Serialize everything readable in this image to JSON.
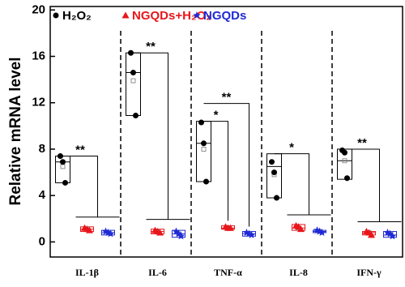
{
  "chart_data": {
    "type": "box",
    "y_label": "Relative mRNA level",
    "categories": [
      "IL-1β",
      "IL-6",
      "TNF-α",
      "IL-8",
      "IFN-γ"
    ],
    "ylim": [
      -1.3,
      20.3
    ],
    "yticks": [
      0,
      4,
      8,
      12,
      16,
      20
    ],
    "series": [
      {
        "name": "H₂O₂",
        "color": "#000000",
        "marker": "circle",
        "points": [
          [
            7.4,
            6.9,
            5.1
          ],
          [
            16.3,
            14.6,
            10.9
          ],
          [
            10.3,
            8.5,
            5.2
          ],
          [
            6.9,
            6.0,
            3.8
          ],
          [
            7.9,
            7.7,
            5.5
          ]
        ],
        "low": [
          5.1,
          10.9,
          5.2,
          3.8,
          5.4
        ],
        "median": [
          6.9,
          14.6,
          8.5,
          6.5,
          7.0
        ],
        "high": [
          7.4,
          16.3,
          10.4,
          7.6,
          8.0
        ],
        "mean": [
          6.5,
          13.9,
          8.0,
          5.8,
          7.0
        ]
      },
      {
        "name": "NGQDs+H₂O₂",
        "color": "#e8161b",
        "marker": "triangle",
        "points": [
          [
            1.2,
            1.1,
            1.0
          ],
          [
            1.0,
            0.9,
            0.8
          ],
          [
            1.3,
            1.2,
            1.2
          ],
          [
            1.4,
            1.3,
            1.1
          ],
          [
            0.9,
            0.8,
            0.6
          ]
        ],
        "low": [
          0.9,
          0.7,
          1.1,
          1.0,
          0.6
        ],
        "median": [
          1.1,
          0.9,
          1.2,
          1.2,
          0.8
        ],
        "high": [
          1.3,
          1.1,
          1.4,
          1.5,
          0.9
        ],
        "mean": [
          1.1,
          0.9,
          1.2,
          1.2,
          0.8
        ]
      },
      {
        "name": "NGQDs",
        "color": "#1f2ad6",
        "marker": "star",
        "points": [
          [
            0.9,
            0.8,
            0.7
          ],
          [
            0.9,
            0.7,
            0.5
          ],
          [
            0.8,
            0.7,
            0.6
          ],
          [
            1.0,
            0.9,
            0.8
          ],
          [
            0.8,
            0.7,
            0.5
          ]
        ],
        "low": [
          0.6,
          0.4,
          0.5,
          0.8,
          0.4
        ],
        "median": [
          0.8,
          0.7,
          0.7,
          0.9,
          0.6
        ],
        "high": [
          1.0,
          1.0,
          0.9,
          1.0,
          0.9
        ],
        "mean": [
          0.8,
          0.7,
          0.7,
          0.9,
          0.7
        ]
      }
    ],
    "annotations": [
      {
        "category": 0,
        "text": "**",
        "compare": [
          1,
          2
        ]
      },
      {
        "category": 1,
        "text": "**",
        "compare": [
          1,
          2
        ]
      },
      {
        "category": 2,
        "text": "*",
        "compare": [
          1
        ]
      },
      {
        "category": 2,
        "text": "**",
        "compare": [
          2
        ]
      },
      {
        "category": 3,
        "text": "*",
        "compare": [
          1,
          2
        ]
      },
      {
        "category": 4,
        "text": "**",
        "compare": [
          1,
          2
        ]
      }
    ]
  }
}
